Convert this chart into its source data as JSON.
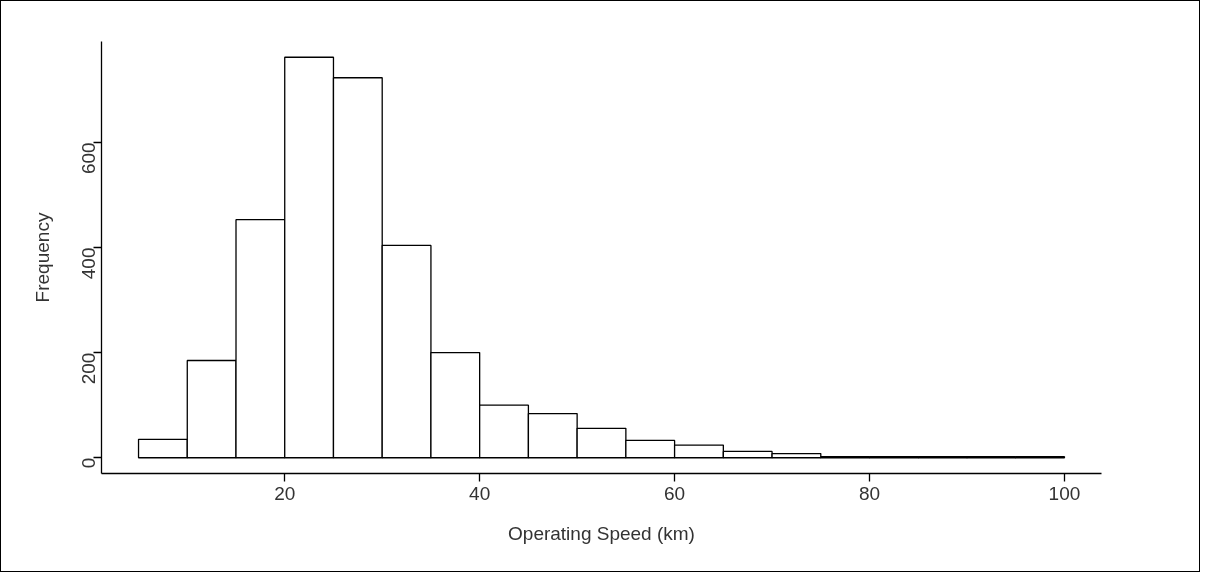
{
  "chart_data": {
    "type": "histogram",
    "xlabel": "Operating Speed (km)",
    "ylabel": "Frequency",
    "bins": [
      5,
      10,
      15,
      20,
      25,
      30,
      35,
      40,
      45,
      50,
      55,
      60,
      65,
      70,
      75,
      80,
      85,
      90,
      95,
      100
    ],
    "values": [
      35,
      185,
      453,
      762,
      723,
      404,
      200,
      100,
      84,
      56,
      33,
      24,
      12,
      8,
      2,
      2,
      2,
      2,
      2
    ],
    "color": "#ffffff",
    "xlim": [
      1.2,
      103.8
    ],
    "ylim": [
      -30,
      792
    ],
    "xticks": [
      20,
      40,
      60,
      80,
      100
    ],
    "yticks": [
      0,
      200,
      400,
      600
    ],
    "grid": false
  }
}
